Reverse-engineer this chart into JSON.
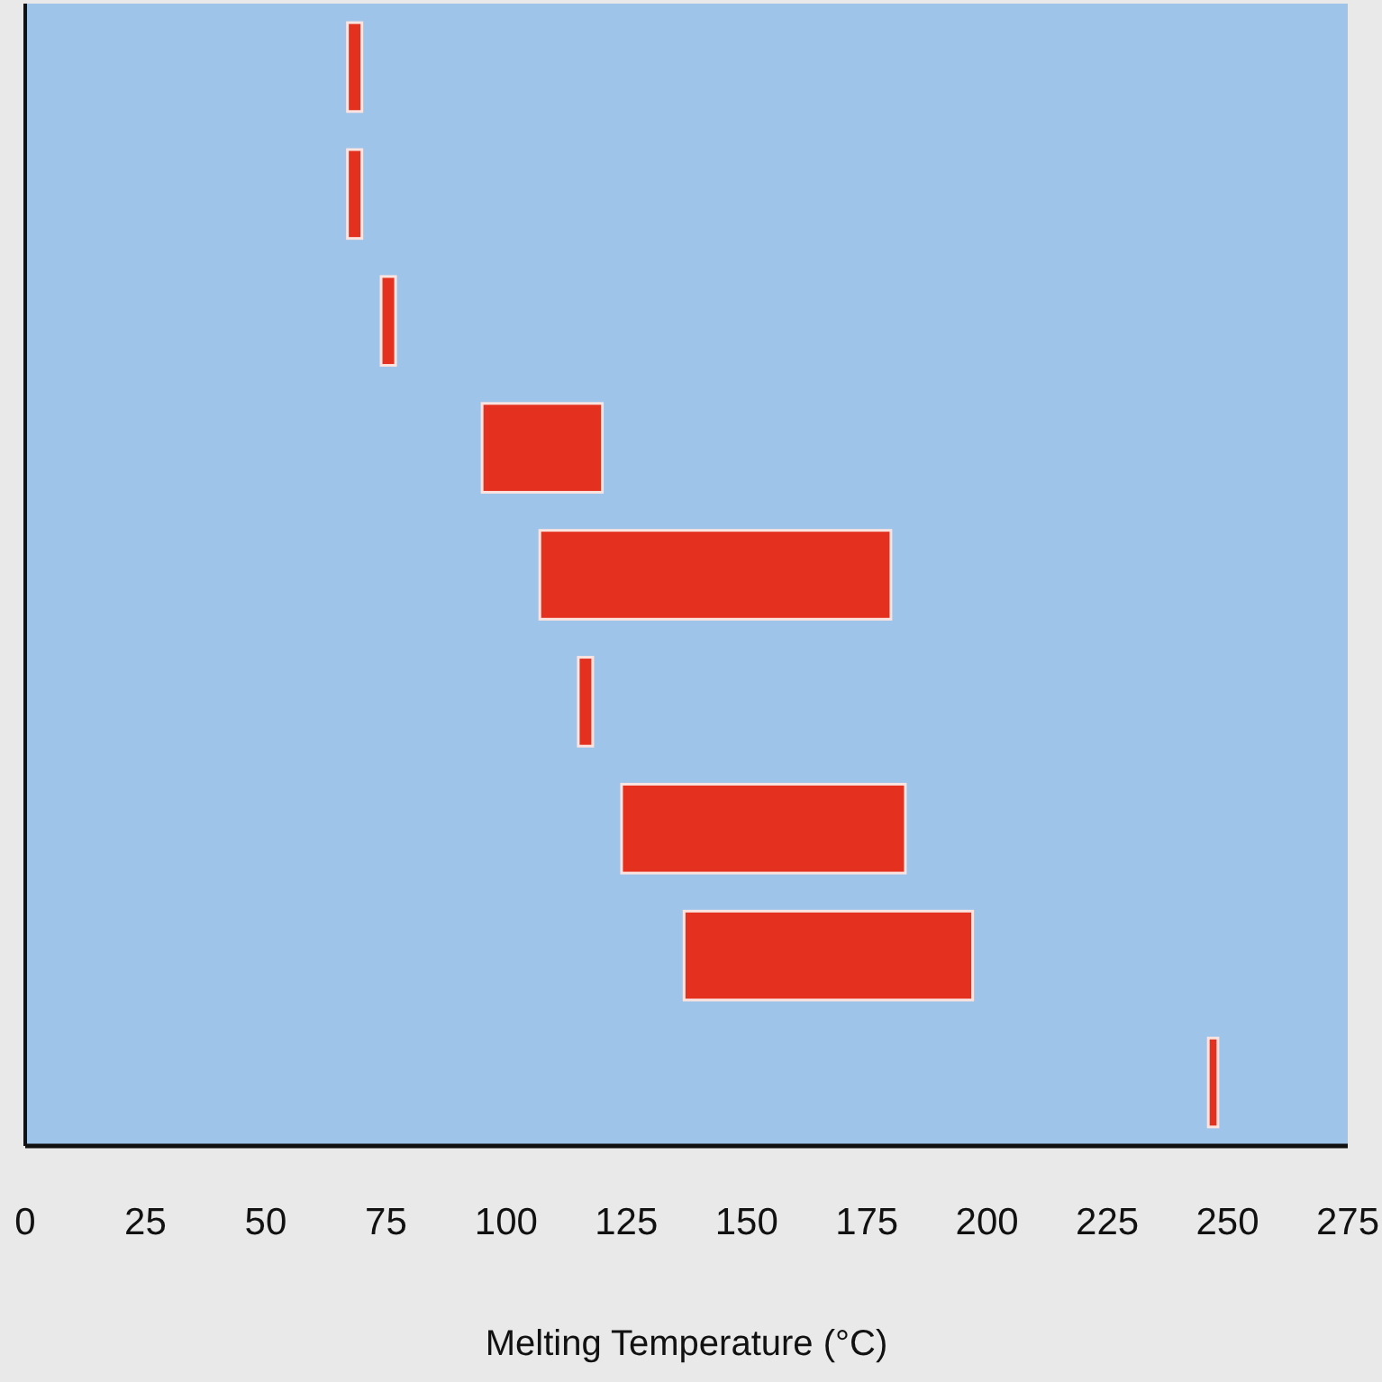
{
  "chart_data": {
    "type": "bar",
    "orientation": "horizontal",
    "xlabel": "Melting Temperature (°C)",
    "categories": [
      null,
      null,
      null,
      null,
      null,
      null,
      null,
      null,
      null
    ],
    "base": [
      67,
      67,
      74,
      95,
      107,
      115,
      124,
      137,
      246
    ],
    "values": [
      3,
      3,
      3,
      25,
      73,
      3,
      59,
      60,
      2
    ],
    "color": "#e3301f",
    "xlim": [
      0,
      275
    ],
    "xticks": [
      0,
      25,
      50,
      75,
      100,
      125,
      150,
      175,
      200,
      225,
      250,
      275
    ],
    "grid": false
  }
}
